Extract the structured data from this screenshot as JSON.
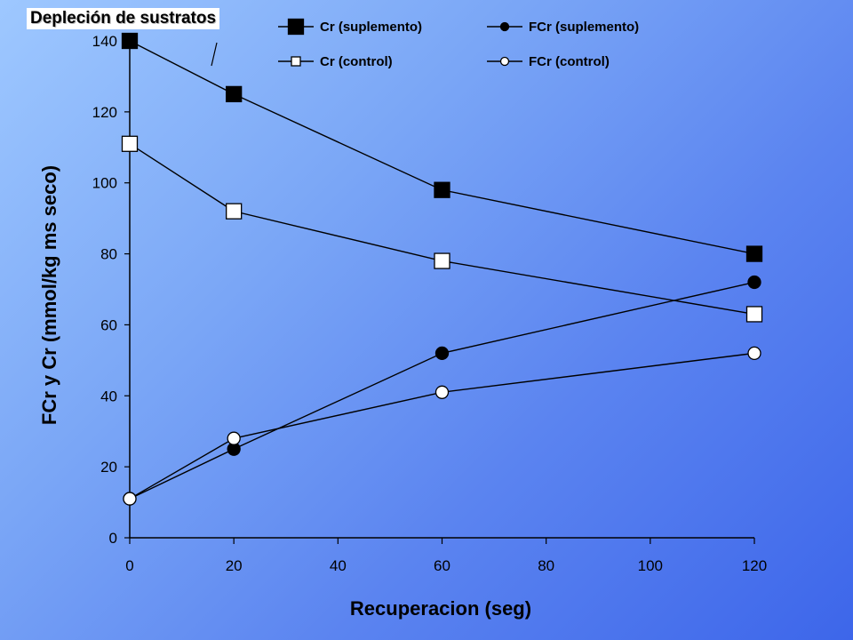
{
  "title": "Depleción de sustratos",
  "colors": {
    "line": "#000000",
    "filled": "#000000",
    "open": "#ffffff",
    "background_start": "#9ec8ff",
    "background_end": "#3d66ea"
  },
  "chart_data": {
    "type": "line",
    "title": "Depleción de sustratos",
    "xlabel": "Recuperacion (seg)",
    "ylabel": "FCr y Cr (mmol/kg ms seco)",
    "xlim": [
      0,
      120
    ],
    "ylim": [
      0,
      140
    ],
    "xticks": [
      0,
      20,
      40,
      60,
      80,
      100,
      120
    ],
    "yticks": [
      0,
      20,
      40,
      60,
      80,
      100,
      120,
      140
    ],
    "grid": false,
    "legend_position": "top",
    "series": [
      {
        "name": "Cr (suplemento)",
        "marker": "square",
        "fill": "filled",
        "x": [
          0,
          20,
          60,
          120
        ],
        "y": [
          140,
          125,
          98,
          80
        ]
      },
      {
        "name": "FCr (suplemento)",
        "marker": "circle",
        "fill": "filled",
        "x": [
          0,
          20,
          60,
          120
        ],
        "y": [
          11,
          25,
          52,
          72
        ]
      },
      {
        "name": "Cr (control)",
        "marker": "square",
        "fill": "open",
        "x": [
          0,
          20,
          60,
          120
        ],
        "y": [
          111,
          92,
          78,
          63
        ]
      },
      {
        "name": "FCr (control)",
        "marker": "circle",
        "fill": "open",
        "x": [
          0,
          20,
          60,
          120
        ],
        "y": [
          11,
          28,
          41,
          52
        ]
      }
    ]
  }
}
